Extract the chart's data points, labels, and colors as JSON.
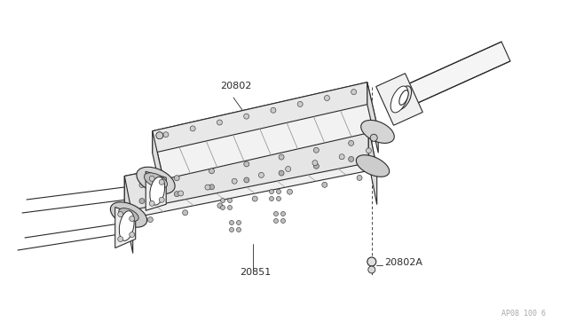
{
  "bg_color": "#ffffff",
  "line_color": "#2a2a2a",
  "label_color": "#2a2a2a",
  "watermark_color": "#aaaaaa",
  "watermark_text": "AP08 100 6",
  "label_20802": "20802",
  "label_20802A": "20802A",
  "label_20851": "20851",
  "figsize": [
    6.4,
    3.72
  ],
  "dpi": 100
}
